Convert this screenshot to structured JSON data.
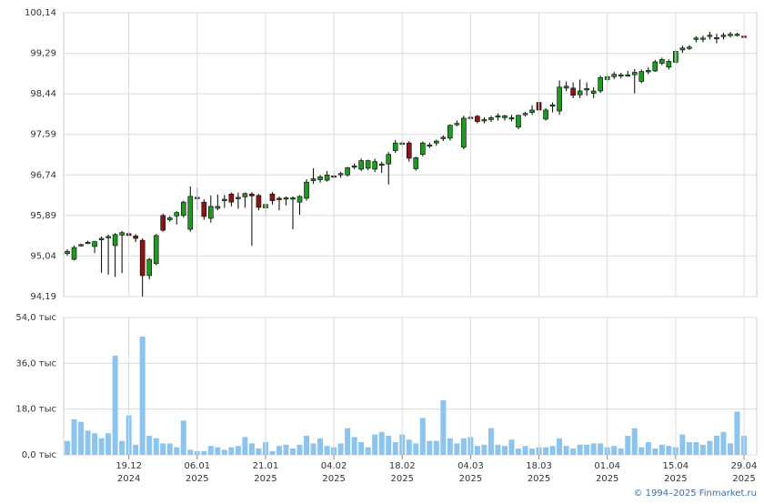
{
  "chart_data": [
    {
      "type": "candlestick",
      "ylim": [
        94.19,
        100.14
      ],
      "yticks": [
        {
          "value": 94.19,
          "label": "94,19"
        },
        {
          "value": 95.04,
          "label": "95,04"
        },
        {
          "value": 95.89,
          "label": "95,89"
        },
        {
          "value": 96.74,
          "label": "96,74"
        },
        {
          "value": 97.59,
          "label": "97,59"
        },
        {
          "value": 98.44,
          "label": "98,44"
        },
        {
          "value": 99.29,
          "label": "99,29"
        },
        {
          "value": 100.14,
          "label": "100,14"
        }
      ],
      "grid": true,
      "up_color": "#1e9a1e",
      "down_color": "#8b1414",
      "open": [
        95.09,
        94.97,
        95.26,
        95.3,
        95.24,
        95.38,
        95.42,
        95.26,
        95.48,
        95.51,
        95.46,
        95.37,
        94.63,
        94.88,
        95.89,
        95.8,
        95.88,
        95.89,
        95.6,
        96.25,
        96.17,
        95.83,
        96.04,
        96.2,
        96.34,
        96.24,
        96.28,
        96.34,
        96.31,
        96.05,
        96.34,
        96.25,
        96.25,
        96.24,
        96.17,
        96.25,
        96.62,
        96.64,
        96.63,
        96.72,
        96.74,
        96.74,
        96.9,
        96.86,
        96.88,
        96.86,
        96.94,
        96.97,
        97.25,
        97.4,
        97.41,
        96.87,
        97.17,
        97.36,
        97.41,
        97.5,
        97.51,
        97.8,
        97.32,
        97.94,
        97.97,
        97.88,
        97.9,
        97.95,
        97.94,
        97.92,
        97.74,
        98.0,
        98.05,
        98.26,
        97.91,
        98.18,
        98.08,
        98.56,
        98.56,
        98.42,
        98.52,
        98.45,
        98.5,
        98.74,
        98.8,
        98.82,
        98.83,
        98.84,
        98.7,
        98.9,
        98.92,
        99.08,
        99.0,
        99.1,
        99.36,
        99.4,
        99.58,
        99.6,
        99.66,
        99.59,
        99.64,
        99.66,
        99.68,
        99.65
      ],
      "high": [
        95.18,
        95.26,
        95.3,
        95.36,
        95.36,
        95.45,
        95.49,
        95.52,
        95.57,
        95.55,
        95.5,
        95.41,
        95.0,
        95.5,
        95.93,
        95.88,
        95.98,
        96.2,
        96.5,
        96.47,
        96.23,
        96.31,
        96.33,
        96.32,
        96.37,
        96.37,
        96.37,
        96.38,
        96.34,
        96.19,
        96.38,
        96.29,
        96.29,
        96.29,
        96.31,
        96.65,
        96.88,
        96.74,
        96.82,
        96.8,
        96.8,
        96.91,
        96.98,
        97.08,
        97.06,
        97.08,
        97.02,
        97.22,
        97.47,
        97.45,
        97.45,
        97.12,
        97.44,
        97.42,
        97.48,
        97.57,
        97.8,
        97.88,
        97.98,
        98.08,
        98.0,
        97.95,
        97.98,
        98.03,
        98.0,
        98.0,
        98.0,
        98.06,
        98.2,
        98.3,
        98.14,
        98.26,
        98.72,
        98.7,
        98.68,
        98.74,
        98.68,
        98.58,
        98.82,
        98.86,
        98.9,
        98.88,
        98.92,
        98.96,
        98.95,
        99.0,
        99.15,
        99.2,
        99.16,
        99.37,
        99.45,
        99.46,
        99.65,
        99.66,
        99.74,
        99.7,
        99.72,
        99.74,
        99.72,
        99.68
      ],
      "low": [
        95.05,
        94.95,
        95.24,
        95.29,
        95.1,
        94.69,
        94.65,
        94.6,
        94.68,
        95.43,
        95.33,
        94.19,
        94.55,
        94.85,
        95.55,
        95.76,
        95.7,
        95.85,
        95.55,
        96.0,
        95.8,
        95.74,
        96.0,
        96.05,
        96.08,
        96.03,
        96.05,
        95.25,
        96.0,
        95.88,
        96.12,
        96.0,
        96.1,
        95.6,
        95.9,
        96.2,
        96.55,
        96.58,
        96.6,
        96.65,
        96.68,
        96.71,
        96.86,
        96.82,
        96.84,
        96.8,
        96.78,
        96.54,
        97.2,
        97.33,
        97.02,
        96.83,
        97.13,
        97.3,
        97.35,
        97.45,
        97.46,
        97.76,
        97.28,
        97.9,
        97.82,
        97.82,
        97.85,
        97.88,
        97.88,
        97.86,
        97.7,
        97.96,
        98.0,
        98.08,
        97.88,
        98.05,
        98.0,
        98.5,
        98.35,
        98.35,
        98.4,
        98.35,
        98.46,
        98.7,
        98.75,
        98.76,
        98.8,
        98.45,
        98.66,
        98.85,
        98.9,
        99.04,
        98.95,
        99.06,
        99.3,
        99.36,
        99.52,
        99.52,
        99.58,
        99.5,
        99.58,
        99.62,
        99.64,
        99.6
      ],
      "close": [
        95.14,
        95.22,
        95.28,
        95.33,
        95.34,
        95.41,
        95.45,
        95.49,
        95.53,
        95.47,
        95.41,
        94.63,
        94.97,
        95.47,
        95.58,
        95.84,
        95.95,
        96.17,
        96.29,
        96.27,
        95.87,
        96.08,
        96.08,
        96.23,
        96.17,
        96.27,
        96.35,
        96.3,
        96.06,
        96.12,
        96.2,
        96.23,
        96.26,
        96.26,
        96.29,
        96.59,
        96.66,
        96.7,
        96.74,
        96.7,
        96.77,
        96.89,
        96.93,
        97.04,
        97.04,
        97.02,
        96.97,
        97.17,
        97.41,
        97.41,
        97.09,
        97.1,
        97.41,
        97.37,
        97.45,
        97.53,
        97.78,
        97.82,
        97.93,
        97.95,
        97.86,
        97.9,
        97.94,
        97.98,
        97.98,
        97.94,
        97.99,
        98.03,
        98.1,
        98.1,
        98.1,
        98.21,
        98.58,
        98.6,
        98.41,
        98.5,
        98.55,
        98.5,
        98.78,
        98.8,
        98.85,
        98.84,
        98.84,
        98.89,
        98.91,
        98.93,
        99.11,
        99.16,
        99.12,
        99.33,
        99.4,
        99.42,
        99.61,
        99.61,
        99.67,
        99.62,
        99.67,
        99.69,
        99.69,
        99.64
      ]
    },
    {
      "type": "bar",
      "ylim": [
        0,
        54
      ],
      "yticks": [
        {
          "value": 0,
          "label": "0,0 тыс"
        },
        {
          "value": 18,
          "label": "18,0 тыс"
        },
        {
          "value": 36,
          "label": "36,0 тыс"
        },
        {
          "value": 54,
          "label": "54,0 тыс"
        }
      ],
      "grid": true,
      "color": "#8cc4f0",
      "categories": [
        null,
        null,
        null,
        null,
        null,
        null,
        null,
        null,
        null,
        "19.12",
        null,
        null,
        null,
        null,
        null,
        null,
        null,
        null,
        null,
        "06.01",
        null,
        null,
        null,
        null,
        null,
        null,
        null,
        null,
        null,
        "21.01",
        null,
        null,
        null,
        null,
        null,
        null,
        null,
        null,
        null,
        "04.02",
        null,
        null,
        null,
        null,
        null,
        null,
        null,
        null,
        null,
        "18.02",
        null,
        null,
        null,
        null,
        null,
        null,
        null,
        null,
        null,
        "04.03",
        null,
        null,
        null,
        null,
        null,
        null,
        null,
        null,
        null,
        "18.03",
        null,
        null,
        null,
        null,
        null,
        null,
        null,
        null,
        null,
        "01.04",
        null,
        null,
        null,
        null,
        null,
        null,
        null,
        null,
        null,
        "15.04",
        null,
        null,
        null,
        null,
        null,
        null,
        null,
        null,
        null,
        "29.04"
      ],
      "category_years": [
        null,
        null,
        null,
        null,
        null,
        null,
        null,
        null,
        null,
        "2024",
        null,
        null,
        null,
        null,
        null,
        null,
        null,
        null,
        null,
        "2025",
        null,
        null,
        null,
        null,
        null,
        null,
        null,
        null,
        null,
        "2025",
        null,
        null,
        null,
        null,
        null,
        null,
        null,
        null,
        null,
        "2025",
        null,
        null,
        null,
        null,
        null,
        null,
        null,
        null,
        null,
        "2025",
        null,
        null,
        null,
        null,
        null,
        null,
        null,
        null,
        null,
        "2025",
        null,
        null,
        null,
        null,
        null,
        null,
        null,
        null,
        null,
        "2025",
        null,
        null,
        null,
        null,
        null,
        null,
        null,
        null,
        null,
        "2025",
        null,
        null,
        null,
        null,
        null,
        null,
        null,
        null,
        null,
        "2025",
        null,
        null,
        null,
        null,
        null,
        null,
        null,
        null,
        null,
        "2025"
      ],
      "values": [
        5.5,
        14,
        13,
        9.5,
        8.5,
        6.5,
        8.5,
        39,
        5.5,
        15.5,
        4,
        46.5,
        7.5,
        6.5,
        4.5,
        4.5,
        3,
        13.5,
        2,
        1.5,
        1.5,
        3.5,
        3,
        2,
        3,
        3.5,
        7,
        4.5,
        2.5,
        5,
        1.5,
        3.5,
        4,
        2.5,
        4,
        7.5,
        4.5,
        6.5,
        3.5,
        3,
        4.5,
        10.5,
        7,
        5,
        3,
        8,
        9,
        7.5,
        5,
        8,
        6,
        4.5,
        14.5,
        5.5,
        5.5,
        21.5,
        6.5,
        4.5,
        6.5,
        7,
        3.5,
        4,
        10.5,
        4,
        3.5,
        6,
        2.5,
        3.5,
        2.5,
        3,
        3,
        3.5,
        6.5,
        3.5,
        2.5,
        4,
        4,
        4.5,
        4.5,
        3,
        3.5,
        2.5,
        7.5,
        10.5,
        3,
        5,
        2.5,
        4,
        3.5,
        3,
        8,
        5,
        5,
        4,
        5.5,
        7.5,
        9,
        4.5,
        17,
        7.5
      ]
    }
  ],
  "footer": "© 1994–2025 Finmarket.ru"
}
